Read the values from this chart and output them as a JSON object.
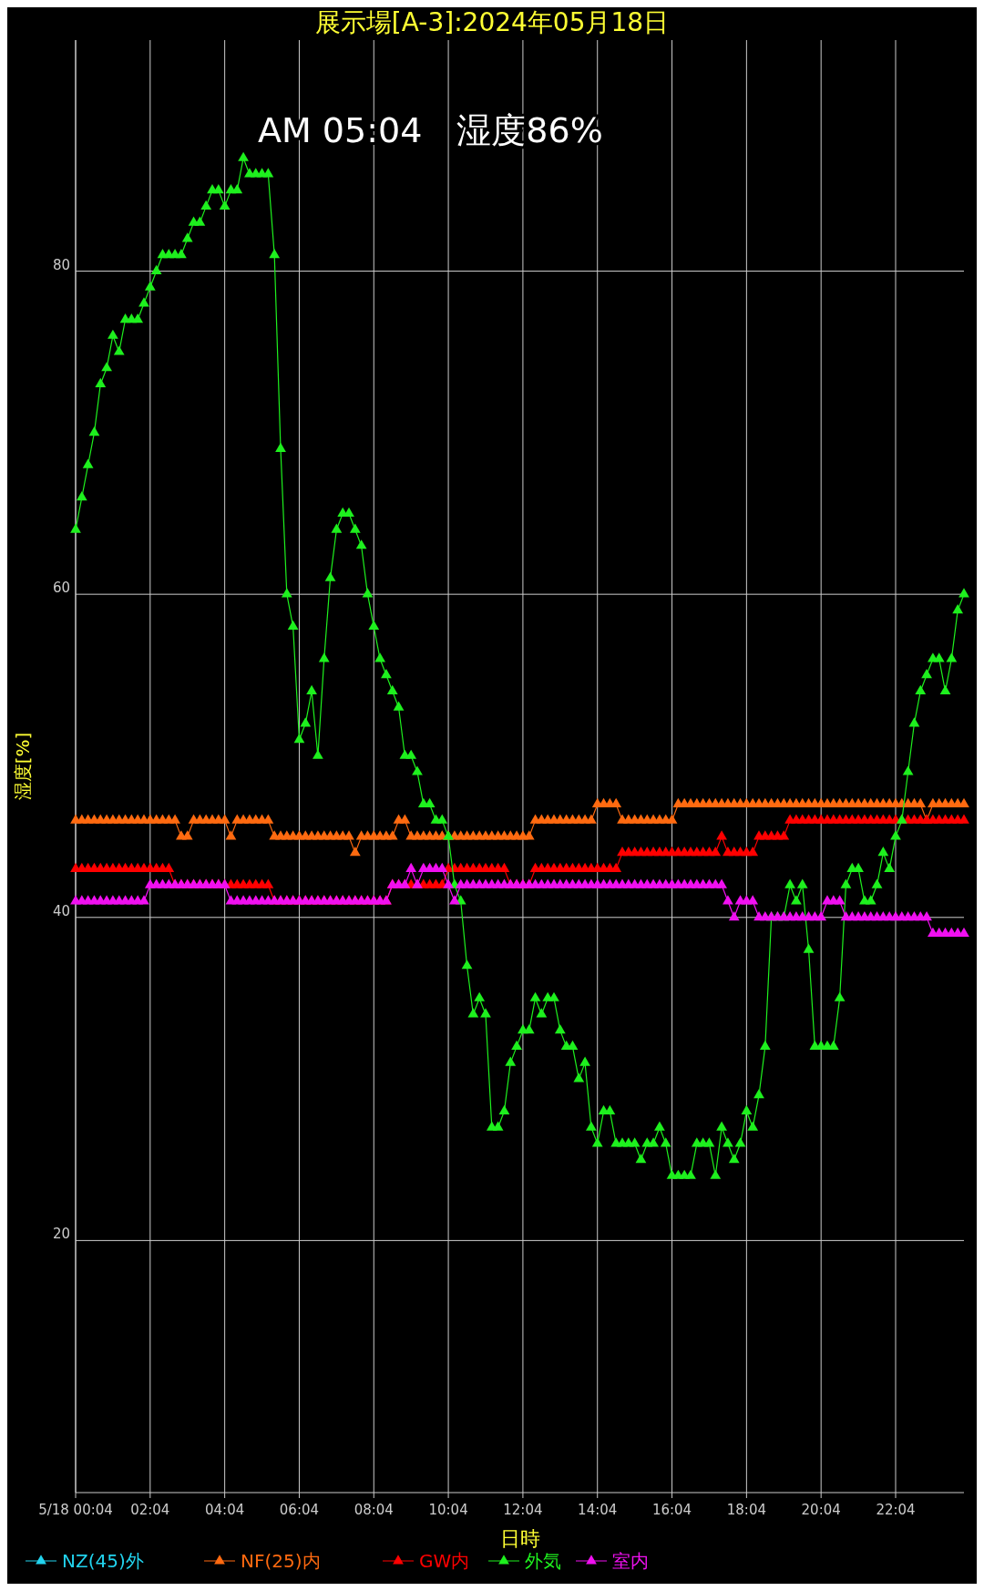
{
  "chart_data": {
    "type": "line",
    "title": "展示場[A-3]:2024年05月18日",
    "xlabel": "日時",
    "ylabel": "湿度[%]",
    "annotations": [
      "AM 05:04　湿度86%"
    ],
    "x": [
      "2024-05-18T00:04",
      "2024-05-18T00:14",
      "2024-05-18T00:24",
      "2024-05-18T00:34",
      "2024-05-18T00:44",
      "2024-05-18T00:54",
      "2024-05-18T01:04",
      "2024-05-18T01:14",
      "2024-05-18T01:24",
      "2024-05-18T01:34",
      "2024-05-18T01:44",
      "2024-05-18T01:54",
      "2024-05-18T02:04",
      "2024-05-18T02:14",
      "2024-05-18T02:24",
      "2024-05-18T02:34",
      "2024-05-18T02:44",
      "2024-05-18T02:54",
      "2024-05-18T03:04",
      "2024-05-18T03:14",
      "2024-05-18T03:24",
      "2024-05-18T03:34",
      "2024-05-18T03:44",
      "2024-05-18T03:54",
      "2024-05-18T04:04",
      "2024-05-18T04:14",
      "2024-05-18T04:24",
      "2024-05-18T04:34",
      "2024-05-18T04:44",
      "2024-05-18T04:54",
      "2024-05-18T05:04",
      "2024-05-18T05:14",
      "2024-05-18T05:24",
      "2024-05-18T05:34",
      "2024-05-18T05:44",
      "2024-05-18T05:54",
      "2024-05-18T06:04",
      "2024-05-18T06:14",
      "2024-05-18T06:24",
      "2024-05-18T06:34",
      "2024-05-18T06:44",
      "2024-05-18T06:54",
      "2024-05-18T07:04",
      "2024-05-18T07:14",
      "2024-05-18T07:24",
      "2024-05-18T07:34",
      "2024-05-18T07:44",
      "2024-05-18T07:54",
      "2024-05-18T08:04",
      "2024-05-18T08:14",
      "2024-05-18T08:24",
      "2024-05-18T08:34",
      "2024-05-18T08:44",
      "2024-05-18T08:54",
      "2024-05-18T09:04",
      "2024-05-18T09:14",
      "2024-05-18T09:24",
      "2024-05-18T09:34",
      "2024-05-18T09:44",
      "2024-05-18T09:54",
      "2024-05-18T10:04",
      "2024-05-18T10:14",
      "2024-05-18T10:24",
      "2024-05-18T10:34",
      "2024-05-18T10:44",
      "2024-05-18T10:54",
      "2024-05-18T11:04",
      "2024-05-18T11:14",
      "2024-05-18T11:24",
      "2024-05-18T11:34",
      "2024-05-18T11:44",
      "2024-05-18T11:54",
      "2024-05-18T12:04",
      "2024-05-18T12:14",
      "2024-05-18T12:24",
      "2024-05-18T12:34",
      "2024-05-18T12:44",
      "2024-05-18T12:54",
      "2024-05-18T13:04",
      "2024-05-18T13:14",
      "2024-05-18T13:24",
      "2024-05-18T13:34",
      "2024-05-18T13:44",
      "2024-05-18T13:54",
      "2024-05-18T14:04",
      "2024-05-18T14:14",
      "2024-05-18T14:24",
      "2024-05-18T14:34",
      "2024-05-18T14:44",
      "2024-05-18T14:54",
      "2024-05-18T15:04",
      "2024-05-18T15:14",
      "2024-05-18T15:24",
      "2024-05-18T15:34",
      "2024-05-18T15:44",
      "2024-05-18T15:54",
      "2024-05-18T16:04",
      "2024-05-18T16:14",
      "2024-05-18T16:24",
      "2024-05-18T16:34",
      "2024-05-18T16:44",
      "2024-05-18T16:54",
      "2024-05-18T17:04",
      "2024-05-18T17:14",
      "2024-05-18T17:24",
      "2024-05-18T17:34",
      "2024-05-18T17:44",
      "2024-05-18T17:54",
      "2024-05-18T18:04",
      "2024-05-18T18:14",
      "2024-05-18T18:24",
      "2024-05-18T18:34",
      "2024-05-18T18:44",
      "2024-05-18T18:54",
      "2024-05-18T19:04",
      "2024-05-18T19:14",
      "2024-05-18T19:24",
      "2024-05-18T19:34",
      "2024-05-18T19:44",
      "2024-05-18T19:54",
      "2024-05-18T20:04",
      "2024-05-18T20:14",
      "2024-05-18T20:24",
      "2024-05-18T20:34",
      "2024-05-18T20:44",
      "2024-05-18T20:54",
      "2024-05-18T21:04",
      "2024-05-18T21:14",
      "2024-05-18T21:24",
      "2024-05-18T21:34",
      "2024-05-18T21:44",
      "2024-05-18T21:54",
      "2024-05-18T22:04",
      "2024-05-18T22:14",
      "2024-05-18T22:24",
      "2024-05-18T22:34",
      "2024-05-18T22:44",
      "2024-05-18T22:54",
      "2024-05-18T23:04",
      "2024-05-18T23:14",
      "2024-05-18T23:24",
      "2024-05-18T23:34",
      "2024-05-18T23:44",
      "2024-05-18T23:54"
    ],
    "series": [
      {
        "name": "NZ(45)外",
        "color": "#22d3ee",
        "values": [
          null,
          null,
          null,
          null,
          null,
          null,
          null,
          null,
          null,
          null,
          null,
          null,
          null,
          null,
          null,
          null,
          null,
          null,
          null,
          null,
          null,
          null,
          null,
          null,
          null,
          null,
          null,
          null,
          null,
          null,
          null,
          null,
          null,
          null,
          null,
          null,
          null,
          null,
          null,
          null,
          null,
          null,
          null,
          null,
          null,
          null,
          null,
          null,
          null,
          null,
          null,
          null,
          null,
          null,
          null,
          null,
          null,
          null,
          null,
          null,
          null,
          null,
          null,
          null,
          null,
          null,
          null,
          null,
          null,
          null,
          null,
          null,
          null,
          null,
          null,
          null,
          null,
          null,
          null,
          null,
          null,
          null,
          null,
          null,
          null,
          null,
          null,
          null,
          null,
          null,
          null,
          null,
          null,
          null,
          null,
          null,
          null,
          null,
          null,
          null,
          null,
          null,
          null,
          null,
          null,
          null,
          null,
          null,
          null,
          null,
          null,
          null,
          null,
          null,
          null,
          null,
          null,
          null,
          null,
          null,
          null,
          null,
          null,
          null,
          null,
          null,
          null,
          null,
          null,
          null,
          null,
          null,
          null,
          null,
          null,
          null,
          null,
          null,
          null,
          null,
          null,
          null,
          null,
          null
        ]
      },
      {
        "name": "NF(25)内",
        "color": "#ff6a10",
        "values": [
          46,
          46,
          46,
          46,
          46,
          46,
          46,
          46,
          46,
          46,
          46,
          46,
          46,
          46,
          46,
          46,
          46,
          45,
          45,
          46,
          46,
          46,
          46,
          46,
          46,
          45,
          46,
          46,
          46,
          46,
          46,
          46,
          45,
          45,
          45,
          45,
          45,
          45,
          45,
          45,
          45,
          45,
          45,
          45,
          45,
          44,
          45,
          45,
          45,
          45,
          45,
          45,
          46,
          46,
          45,
          45,
          45,
          45,
          45,
          45,
          45,
          45,
          45,
          45,
          45,
          45,
          45,
          45,
          45,
          45,
          45,
          45,
          45,
          45,
          46,
          46,
          46,
          46,
          46,
          46,
          46,
          46,
          46,
          46,
          47,
          47,
          47,
          47,
          46,
          46,
          46,
          46,
          46,
          46,
          46,
          46,
          46,
          47,
          47,
          47,
          47,
          47,
          47,
          47,
          47,
          47,
          47,
          47,
          47,
          47,
          47,
          47,
          47,
          47,
          47,
          47,
          47,
          47,
          47,
          47,
          47,
          47,
          47,
          47,
          47,
          47,
          47,
          47,
          47,
          47,
          47,
          47,
          47,
          47,
          47,
          47,
          47,
          46,
          47,
          47,
          47,
          47,
          47,
          47
        ]
      },
      {
        "name": "GW内",
        "color": "#ff0000",
        "values": [
          43,
          43,
          43,
          43,
          43,
          43,
          43,
          43,
          43,
          43,
          43,
          43,
          43,
          43,
          43,
          43,
          42,
          42,
          42,
          42,
          42,
          42,
          42,
          42,
          42,
          42,
          42,
          42,
          42,
          42,
          42,
          42,
          41,
          41,
          41,
          41,
          41,
          41,
          41,
          41,
          41,
          41,
          41,
          41,
          41,
          41,
          41,
          41,
          41,
          41,
          41,
          42,
          42,
          42,
          42,
          42,
          42,
          42,
          42,
          42,
          43,
          43,
          43,
          43,
          43,
          43,
          43,
          43,
          43,
          43,
          42,
          42,
          42,
          42,
          43,
          43,
          43,
          43,
          43,
          43,
          43,
          43,
          43,
          43,
          43,
          43,
          43,
          43,
          44,
          44,
          44,
          44,
          44,
          44,
          44,
          44,
          44,
          44,
          44,
          44,
          44,
          44,
          44,
          44,
          45,
          44,
          44,
          44,
          44,
          44,
          45,
          45,
          45,
          45,
          45,
          46,
          46,
          46,
          46,
          46,
          46,
          46,
          46,
          46,
          46,
          46,
          46,
          46,
          46,
          46,
          46,
          46,
          46,
          46,
          46,
          46,
          46,
          46,
          46,
          46,
          46,
          46,
          46,
          46
        ]
      },
      {
        "name": "外気",
        "color": "#1ef01e",
        "values": [
          64,
          66,
          68,
          70,
          73,
          74,
          76,
          75,
          77,
          77,
          77,
          78,
          79,
          80,
          81,
          81,
          81,
          81,
          82,
          83,
          83,
          84,
          85,
          85,
          84,
          85,
          85,
          87,
          86,
          86,
          86,
          86,
          81,
          69,
          60,
          58,
          51,
          52,
          54,
          50,
          56,
          61,
          64,
          65,
          65,
          64,
          63,
          60,
          58,
          56,
          55,
          54,
          53,
          50,
          50,
          49,
          47,
          47,
          46,
          46,
          45,
          42,
          41,
          37,
          34,
          35,
          34,
          27,
          27,
          28,
          31,
          32,
          33,
          33,
          35,
          34,
          35,
          35,
          33,
          32,
          32,
          30,
          31,
          27,
          26,
          28,
          28,
          26,
          26,
          26,
          26,
          25,
          26,
          26,
          27,
          26,
          24,
          24,
          24,
          24,
          26,
          26,
          26,
          24,
          27,
          26,
          25,
          26,
          28,
          27,
          29,
          32,
          40,
          40,
          40,
          42,
          41,
          42,
          38,
          32,
          32,
          32,
          32,
          35,
          42,
          43,
          43,
          41,
          41,
          42,
          44,
          43,
          45,
          46,
          49,
          52,
          54,
          55,
          56,
          56,
          54,
          56,
          59,
          60
        ]
      },
      {
        "name": "室内",
        "color": "#f010f0",
        "values": [
          41,
          41,
          41,
          41,
          41,
          41,
          41,
          41,
          41,
          41,
          41,
          41,
          42,
          42,
          42,
          42,
          42,
          42,
          42,
          42,
          42,
          42,
          42,
          42,
          42,
          41,
          41,
          41,
          41,
          41,
          41,
          41,
          41,
          41,
          41,
          41,
          41,
          41,
          41,
          41,
          41,
          41,
          41,
          41,
          41,
          41,
          41,
          41,
          41,
          41,
          41,
          42,
          42,
          42,
          43,
          42,
          43,
          43,
          43,
          43,
          42,
          41,
          42,
          42,
          42,
          42,
          42,
          42,
          42,
          42,
          42,
          42,
          42,
          42,
          42,
          42,
          42,
          42,
          42,
          42,
          42,
          42,
          42,
          42,
          42,
          42,
          42,
          42,
          42,
          42,
          42,
          42,
          42,
          42,
          42,
          42,
          42,
          42,
          42,
          42,
          42,
          42,
          42,
          42,
          42,
          41,
          40,
          41,
          41,
          41,
          40,
          40,
          40,
          40,
          40,
          40,
          40,
          40,
          40,
          40,
          40,
          41,
          41,
          41,
          40,
          40,
          40,
          40,
          40,
          40,
          40,
          40,
          40,
          40,
          40,
          40,
          40,
          40,
          39,
          39,
          39,
          39,
          39,
          39
        ]
      }
    ],
    "xlim": [
      "2024-05-18T00:04",
      "2024-05-18T23:54"
    ],
    "xticks": [
      {
        "value": "2024-05-18T00:04",
        "label": "5/18 00:04"
      },
      {
        "value": "2024-05-18T02:04",
        "label": "02:04"
      },
      {
        "value": "2024-05-18T04:04",
        "label": "04:04"
      },
      {
        "value": "2024-05-18T06:04",
        "label": "06:04"
      },
      {
        "value": "2024-05-18T08:04",
        "label": "08:04"
      },
      {
        "value": "2024-05-18T10:04",
        "label": "10:04"
      },
      {
        "value": "2024-05-18T12:04",
        "label": "12:04"
      },
      {
        "value": "2024-05-18T14:04",
        "label": "14:04"
      },
      {
        "value": "2024-05-18T16:04",
        "label": "16:04"
      },
      {
        "value": "2024-05-18T18:04",
        "label": "18:04"
      },
      {
        "value": "2024-05-18T20:04",
        "label": "20:04"
      },
      {
        "value": "2024-05-18T22:04",
        "label": "22:04"
      }
    ],
    "ylim": [
      4.4,
      94.3
    ],
    "yticks": [
      20,
      40,
      60,
      80
    ],
    "grid": true,
    "legend": "bottom",
    "marker": "triangle",
    "line_style": "solid"
  }
}
